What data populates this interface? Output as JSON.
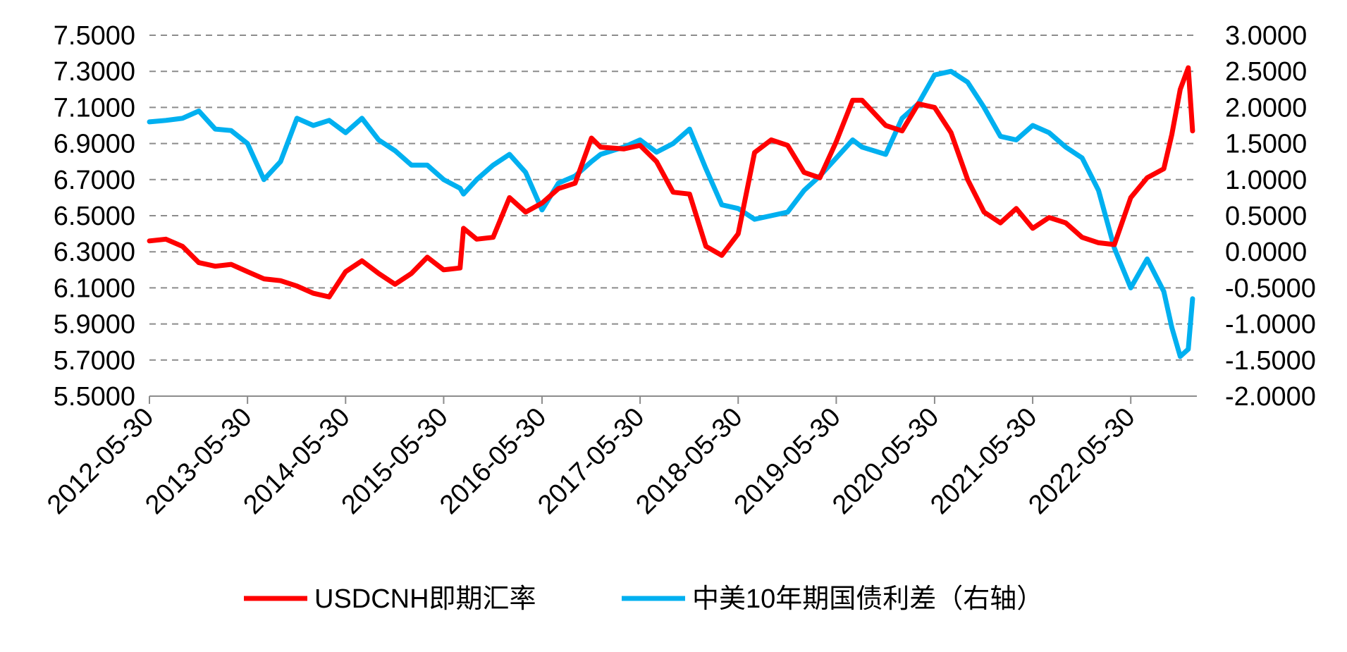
{
  "chart_data": {
    "type": "line",
    "x": [
      "2012-05-30",
      "2012-07-30",
      "2012-09-30",
      "2012-11-30",
      "2013-01-30",
      "2013-03-30",
      "2013-05-30",
      "2013-07-30",
      "2013-09-30",
      "2013-11-30",
      "2014-01-30",
      "2014-03-30",
      "2014-05-30",
      "2014-07-30",
      "2014-09-30",
      "2014-11-30",
      "2015-01-30",
      "2015-03-30",
      "2015-05-30",
      "2015-07-30",
      "2015-08-12",
      "2015-09-30",
      "2015-11-30",
      "2016-01-30",
      "2016-03-30",
      "2016-05-30",
      "2016-07-30",
      "2016-09-30",
      "2016-11-30",
      "2017-01-03",
      "2017-03-30",
      "2017-05-30",
      "2017-07-30",
      "2017-09-30",
      "2017-11-30",
      "2018-01-30",
      "2018-03-30",
      "2018-05-30",
      "2018-07-30",
      "2018-09-30",
      "2018-11-30",
      "2019-01-30",
      "2019-03-30",
      "2019-05-30",
      "2019-07-30",
      "2019-09-03",
      "2019-11-30",
      "2020-01-30",
      "2020-03-30",
      "2020-05-30",
      "2020-07-30",
      "2020-09-30",
      "2020-11-30",
      "2021-01-30",
      "2021-03-30",
      "2021-05-30",
      "2021-07-30",
      "2021-09-30",
      "2021-11-30",
      "2022-01-30",
      "2022-03-30",
      "2022-05-30",
      "2022-07-30",
      "2022-09-30",
      "2022-10-30",
      "2022-11-30",
      "2022-12-30",
      "2023-01-15"
    ],
    "series": [
      {
        "name": "USDCNH即期汇率",
        "axis": "left",
        "color": "#ff0000",
        "values": [
          6.36,
          6.37,
          6.33,
          6.24,
          6.22,
          6.23,
          6.19,
          6.15,
          6.14,
          6.11,
          6.07,
          6.05,
          6.19,
          6.25,
          6.18,
          6.12,
          6.18,
          6.27,
          6.2,
          6.21,
          6.43,
          6.37,
          6.38,
          6.6,
          6.52,
          6.57,
          6.65,
          6.68,
          6.93,
          6.88,
          6.87,
          6.89,
          6.8,
          6.63,
          6.62,
          6.33,
          6.28,
          6.4,
          6.85,
          6.92,
          6.89,
          6.74,
          6.71,
          6.91,
          7.14,
          7.14,
          7.0,
          6.97,
          7.12,
          7.1,
          6.96,
          6.7,
          6.52,
          6.46,
          6.54,
          6.43,
          6.49,
          6.46,
          6.38,
          6.35,
          6.34,
          6.6,
          6.71,
          6.76,
          6.95,
          7.2,
          7.32,
          6.97
        ]
      },
      {
        "name": "中美10年期国债利差（右轴）",
        "axis": "right",
        "color": "#00b0f0",
        "values": [
          1.8,
          1.82,
          1.85,
          1.95,
          1.7,
          1.68,
          1.5,
          1.0,
          1.25,
          1.85,
          1.75,
          1.82,
          1.65,
          1.85,
          1.55,
          1.4,
          1.2,
          1.2,
          1.0,
          0.88,
          0.8,
          1.0,
          1.2,
          1.35,
          1.1,
          0.58,
          0.95,
          1.05,
          1.25,
          1.35,
          1.45,
          1.55,
          1.38,
          1.5,
          1.7,
          1.15,
          0.65,
          0.6,
          0.45,
          0.5,
          0.55,
          0.85,
          1.05,
          1.3,
          1.55,
          1.45,
          1.35,
          1.85,
          2.05,
          2.45,
          2.5,
          2.35,
          2.0,
          1.6,
          1.55,
          1.75,
          1.65,
          1.45,
          1.3,
          0.85,
          0.05,
          -0.5,
          -0.1,
          -0.55,
          -1.05,
          -1.45,
          -1.35,
          -0.65
        ]
      }
    ],
    "y_left": {
      "min": 5.5,
      "max": 7.5,
      "ticks": [
        "7.5000",
        "7.3000",
        "7.1000",
        "6.9000",
        "6.7000",
        "6.5000",
        "6.3000",
        "6.1000",
        "5.9000",
        "5.7000",
        "5.5000"
      ]
    },
    "y_right": {
      "min": -2.0,
      "max": 3.0,
      "ticks": [
        "3.0000",
        "2.5000",
        "2.0000",
        "1.5000",
        "1.0000",
        "0.5000",
        "0.0000",
        "-0.5000",
        "-1.0000",
        "-1.5000",
        "-2.0000"
      ]
    },
    "x_ticks": [
      "2012-05-30",
      "2013-05-30",
      "2014-05-30",
      "2015-05-30",
      "2016-05-30",
      "2017-05-30",
      "2018-05-30",
      "2019-05-30",
      "2020-05-30",
      "2021-05-30",
      "2022-05-30"
    ],
    "grid": true,
    "legend_position": "bottom",
    "title": "",
    "xlabel": "",
    "ylabel": ""
  }
}
